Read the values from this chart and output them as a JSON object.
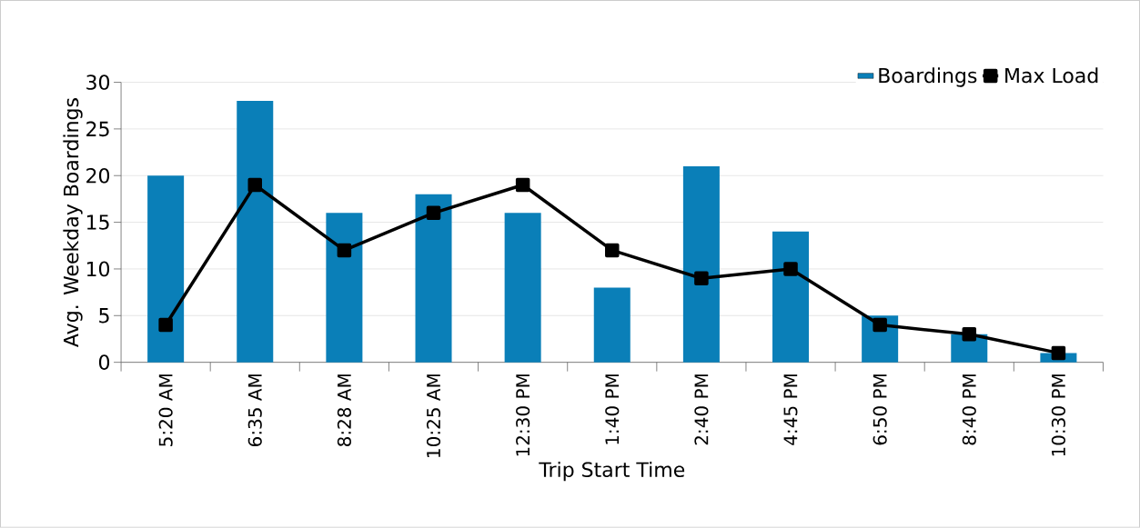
{
  "chart_data": {
    "type": "bar",
    "xlabel": "Trip Start Time",
    "ylabel": "Avg. Weekday Boardings",
    "categories": [
      "5:20 AM",
      "6:35 AM",
      "8:28 AM",
      "10:25 AM",
      "12:30 PM",
      "1:40 PM",
      "2:40 PM",
      "4:45 PM",
      "6:50 PM",
      "8:40 PM",
      "10:30 PM"
    ],
    "series": [
      {
        "name": "Boardings",
        "color": "#0a7fb8",
        "values": [
          20,
          28,
          16,
          18,
          16,
          8,
          21,
          14,
          5,
          3,
          1
        ]
      },
      {
        "name": "Max Load",
        "type": "line",
        "color": "#000000",
        "values": [
          4,
          19,
          12,
          16,
          19,
          12,
          9,
          10,
          4,
          3,
          1
        ]
      }
    ],
    "ylim": [
      0,
      30
    ],
    "yticks": [
      0,
      5,
      10,
      15,
      20,
      25,
      30
    ],
    "grid": "y",
    "legend": "top right",
    "marker": "square",
    "line_style": "solid"
  }
}
